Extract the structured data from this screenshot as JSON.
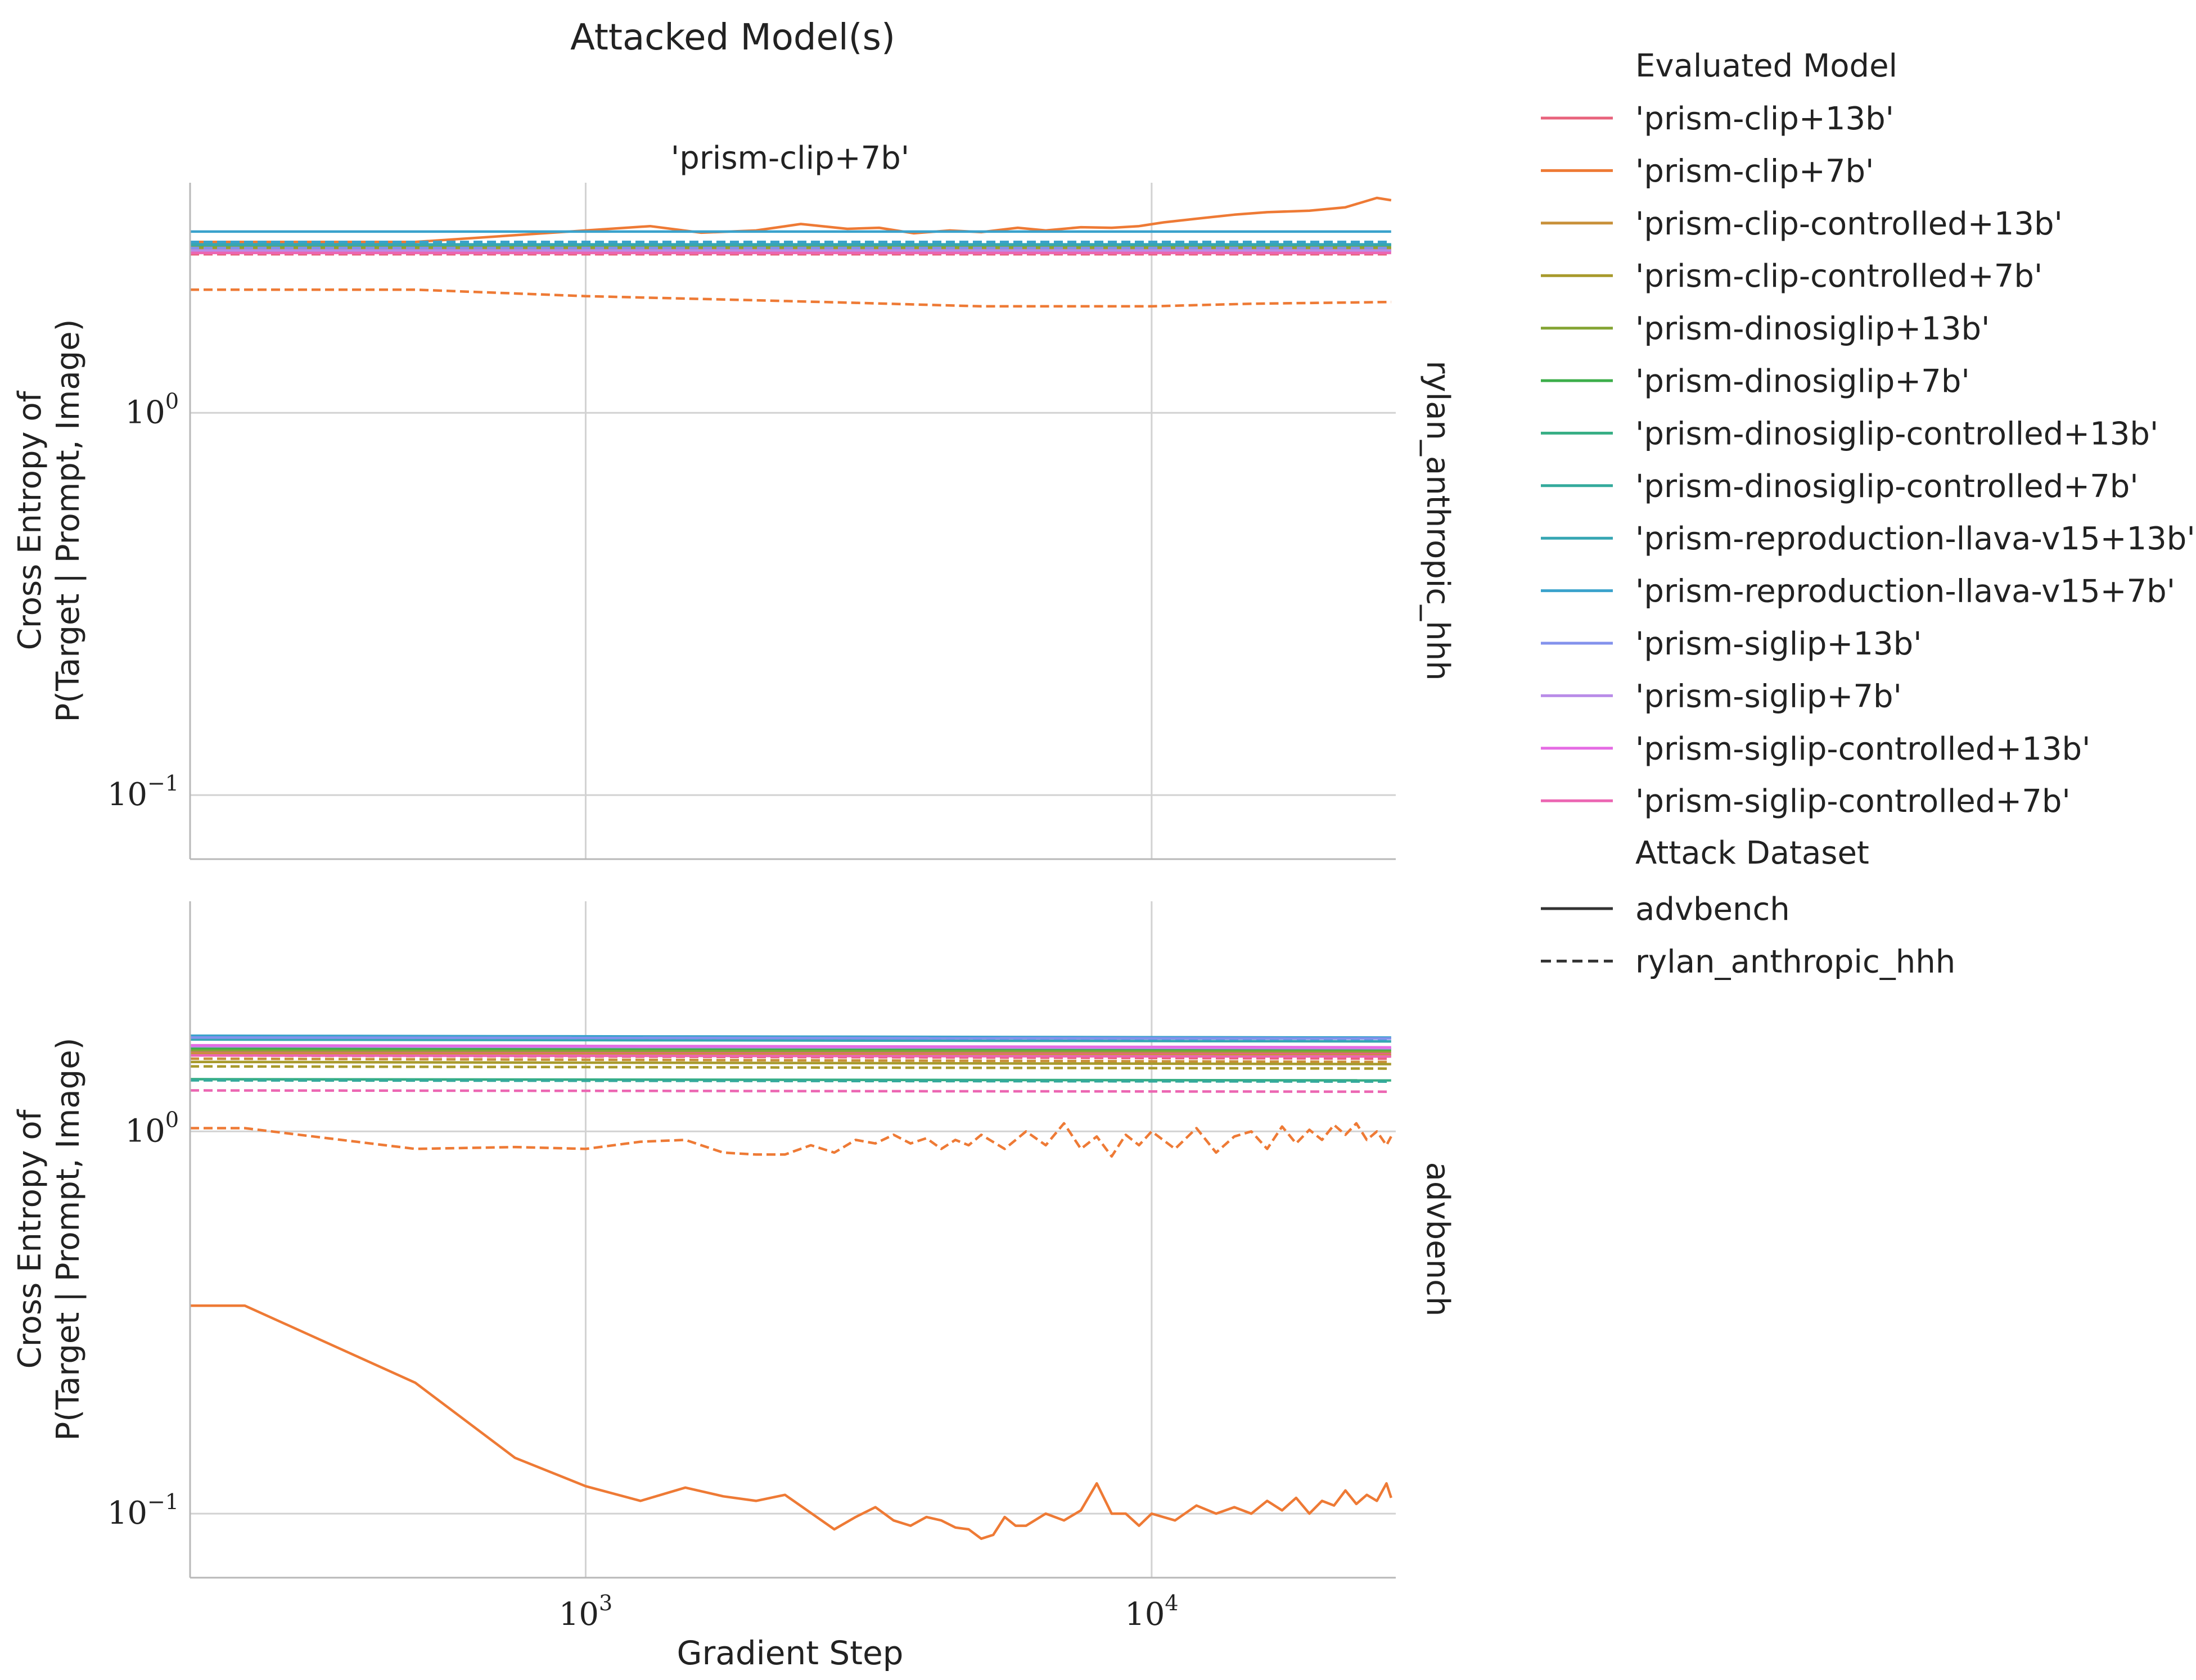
{
  "figure": {
    "title": "Attacked Model(s)",
    "column_title": "'prism-clip+7b'",
    "xlabel": "Gradient Step",
    "ylabel_line1": "Cross Entropy of",
    "ylabel_line2": "P(Target | Prompt, Image)",
    "row_labels": [
      "rylan_anthropic_hhh",
      "advbench"
    ]
  },
  "legend": {
    "title_models": "Evaluated Model",
    "models": [
      {
        "label": "'prism-clip+13b'",
        "color": "#e8637c"
      },
      {
        "label": "'prism-clip+7b'",
        "color": "#ee7a35"
      },
      {
        "label": "'prism-clip-controlled+13b'",
        "color": "#c8913a"
      },
      {
        "label": "'prism-clip-controlled+7b'",
        "color": "#a89a2c"
      },
      {
        "label": "'prism-dinosiglip+13b'",
        "color": "#85a535"
      },
      {
        "label": "'prism-dinosiglip+7b'",
        "color": "#3cae4a"
      },
      {
        "label": "'prism-dinosiglip-controlled+13b'",
        "color": "#36ae84"
      },
      {
        "label": "'prism-dinosiglip-controlled+7b'",
        "color": "#34aa9c"
      },
      {
        "label": "'prism-reproduction-llava-v15+13b'",
        "color": "#36a6b3"
      },
      {
        "label": "'prism-reproduction-llava-v15+7b'",
        "color": "#3aa2cc"
      },
      {
        "label": "'prism-siglip+13b'",
        "color": "#8392ec"
      },
      {
        "label": "'prism-siglip+7b'",
        "color": "#b98ce8"
      },
      {
        "label": "'prism-siglip-controlled+13b'",
        "color": "#e56ce4"
      },
      {
        "label": "'prism-siglip-controlled+7b'",
        "color": "#ec66b2"
      }
    ],
    "title_datasets": "Attack Dataset",
    "datasets": [
      {
        "label": "advbench",
        "style": "solid"
      },
      {
        "label": "rylan_anthropic_hhh",
        "style": "dashed"
      }
    ]
  },
  "chart_data": {
    "type": "line",
    "x_scale": "log",
    "y_scale": "log",
    "xlim": [
      200,
      27000
    ],
    "x_ticks": [
      {
        "value": 1000,
        "base": "10",
        "exp": "3"
      },
      {
        "value": 10000,
        "base": "10",
        "exp": "4"
      }
    ],
    "y_ticks": [
      {
        "value": 1,
        "base": "10",
        "exp": "0"
      },
      {
        "value": 0.1,
        "base": "10",
        "exp": "−1"
      }
    ],
    "grid": true,
    "legend_placement": "right, outside",
    "panels": [
      {
        "row": "rylan_anthropic_hhh",
        "ylim": [
          0.068,
          4.0
        ],
        "series": [
          {
            "model": "'prism-clip+7b'",
            "dataset": "advbench",
            "x": [
              200,
              500,
              1000,
              1300,
              1600,
              2000,
              2400,
              2900,
              3300,
              3800,
              4400,
              5000,
              5800,
              6500,
              7500,
              8500,
              9500,
              10500,
              12000,
              14000,
              16000,
              19000,
              22000,
              25000,
              26500
            ],
            "y": [
              2.8,
              2.8,
              3.0,
              3.08,
              2.96,
              3.0,
              3.12,
              3.03,
              3.05,
              2.95,
              3.0,
              2.97,
              3.05,
              3.0,
              3.06,
              3.05,
              3.08,
              3.15,
              3.22,
              3.3,
              3.35,
              3.38,
              3.45,
              3.65,
              3.6
            ]
          },
          {
            "model": "'prism-clip+7b'",
            "dataset": "rylan_anthropic_hhh",
            "x": [
              200,
              500,
              1000,
              2000,
              3000,
              5000,
              8000,
              10000,
              15000,
              20000,
              26500
            ],
            "y": [
              2.1,
              2.1,
              2.02,
              1.97,
              1.94,
              1.9,
              1.9,
              1.9,
              1.93,
              1.94,
              1.95
            ]
          },
          {
            "model": "'prism-clip+13b'",
            "dataset": "advbench",
            "x": [
              200,
              26500
            ],
            "y": [
              2.65,
              2.65
            ]
          },
          {
            "model": "'prism-clip+13b'",
            "dataset": "rylan_anthropic_hhh",
            "x": [
              200,
              26500
            ],
            "y": [
              2.6,
              2.6
            ]
          },
          {
            "model": "'prism-clip-controlled+13b'",
            "dataset": "advbench",
            "x": [
              200,
              26500
            ],
            "y": [
              2.68,
              2.68
            ]
          },
          {
            "model": "'prism-clip-controlled+7b'",
            "dataset": "advbench",
            "x": [
              200,
              26500
            ],
            "y": [
              2.7,
              2.7
            ]
          },
          {
            "model": "'prism-dinosiglip+13b'",
            "dataset": "advbench",
            "x": [
              200,
              26500
            ],
            "y": [
              2.72,
              2.72
            ]
          },
          {
            "model": "'prism-dinosiglip-controlled+7b'",
            "dataset": "advbench",
            "x": [
              200,
              26500
            ],
            "y": [
              2.75,
              2.75
            ]
          },
          {
            "model": "'prism-reproduction-llava-v15+13b'",
            "dataset": "advbench",
            "x": [
              200,
              26500
            ],
            "y": [
              2.76,
              2.76
            ]
          },
          {
            "model": "'prism-reproduction-llava-v15+7b'",
            "dataset": "advbench",
            "x": [
              200,
              26500
            ],
            "y": [
              2.98,
              2.98
            ]
          },
          {
            "model": "'prism-siglip+7b'",
            "dataset": "advbench",
            "x": [
              200,
              26500
            ],
            "y": [
              2.66,
              2.66
            ]
          },
          {
            "model": "'prism-siglip-controlled+7b'",
            "dataset": "advbench",
            "x": [
              200,
              26500
            ],
            "y": [
              2.62,
              2.62
            ]
          },
          {
            "model": "'prism-reproduction-llava-v15+7b'",
            "dataset": "rylan_anthropic_hhh",
            "x": [
              200,
              26500
            ],
            "y": [
              2.8,
              2.8
            ]
          },
          {
            "model": "'prism-siglip+13b'",
            "dataset": "rylan_anthropic_hhh",
            "x": [
              200,
              26500
            ],
            "y": [
              2.7,
              2.7
            ]
          }
        ]
      },
      {
        "row": "advbench",
        "ylim": [
          0.068,
          4.0
        ],
        "series": [
          {
            "model": "'prism-clip+7b'",
            "dataset": "advbench",
            "x": [
              200,
              250,
              500,
              750,
              1000,
              1250,
              1500,
              1750,
              2000,
              2250,
              2750,
              3000,
              3250,
              3500,
              3750,
              4000,
              4250,
              4500,
              4750,
              5000,
              5250,
              5500,
              5750,
              6000,
              6500,
              7000,
              7500,
              8000,
              8500,
              9000,
              9500,
              10000,
              11000,
              12000,
              13000,
              14000,
              15000,
              16000,
              17000,
              18000,
              19000,
              20000,
              21000,
              22000,
              23000,
              24000,
              25000,
              26000,
              26500
            ],
            "y": [
              0.35,
              0.35,
              0.22,
              0.14,
              0.118,
              0.108,
              0.117,
              0.111,
              0.108,
              0.112,
              0.091,
              0.098,
              0.104,
              0.096,
              0.093,
              0.098,
              0.096,
              0.092,
              0.091,
              0.086,
              0.088,
              0.098,
              0.093,
              0.093,
              0.1,
              0.096,
              0.102,
              0.12,
              0.1,
              0.1,
              0.093,
              0.1,
              0.096,
              0.105,
              0.1,
              0.104,
              0.1,
              0.108,
              0.102,
              0.11,
              0.1,
              0.108,
              0.105,
              0.115,
              0.106,
              0.112,
              0.108,
              0.12,
              0.11
            ]
          },
          {
            "model": "'prism-clip+7b'",
            "dataset": "rylan_anthropic_hhh",
            "x": [
              200,
              250,
              500,
              750,
              1000,
              1250,
              1500,
              1750,
              2000,
              2250,
              2500,
              2750,
              3000,
              3250,
              3500,
              3750,
              4000,
              4250,
              4500,
              4750,
              5000,
              5500,
              6000,
              6500,
              7000,
              7500,
              8000,
              8500,
              9000,
              9500,
              10000,
              11000,
              12000,
              13000,
              14000,
              15000,
              16000,
              17000,
              18000,
              19000,
              20000,
              21000,
              22000,
              23000,
              24000,
              25000,
              26000,
              26500
            ],
            "y": [
              1.02,
              1.02,
              0.9,
              0.91,
              0.9,
              0.94,
              0.95,
              0.88,
              0.87,
              0.87,
              0.92,
              0.88,
              0.95,
              0.93,
              0.98,
              0.93,
              0.96,
              0.9,
              0.95,
              0.92,
              0.98,
              0.9,
              1.0,
              0.92,
              1.05,
              0.9,
              0.97,
              0.86,
              0.98,
              0.92,
              1.0,
              0.9,
              1.02,
              0.88,
              0.97,
              1.0,
              0.9,
              1.03,
              0.93,
              1.01,
              0.95,
              1.04,
              0.98,
              1.05,
              0.95,
              1.0,
              0.92,
              0.97
            ]
          },
          {
            "model": "'prism-clip+13b'",
            "dataset": "advbench",
            "x": [
              200,
              26500
            ],
            "y": [
              1.62,
              1.6
            ]
          },
          {
            "model": "'prism-clip+13b'",
            "dataset": "rylan_anthropic_hhh",
            "x": [
              200,
              26500
            ],
            "y": [
              1.58,
              1.55
            ]
          },
          {
            "model": "'prism-clip-controlled+13b'",
            "dataset": "advbench",
            "x": [
              200,
              26500
            ],
            "y": [
              1.6,
              1.58
            ]
          },
          {
            "model": "'prism-clip-controlled+13b'",
            "dataset": "rylan_anthropic_hhh",
            "x": [
              200,
              26500
            ],
            "y": [
              1.55,
              1.52
            ]
          },
          {
            "model": "'prism-clip-controlled+7b'",
            "dataset": "advbench",
            "x": [
              200,
              26500
            ],
            "y": [
              1.52,
              1.5
            ]
          },
          {
            "model": "'prism-clip-controlled+7b'",
            "dataset": "rylan_anthropic_hhh",
            "x": [
              200,
              26500
            ],
            "y": [
              1.48,
              1.46
            ]
          },
          {
            "model": "'prism-dinosiglip+13b'",
            "dataset": "advbench",
            "x": [
              200,
              26500
            ],
            "y": [
              1.63,
              1.62
            ]
          },
          {
            "model": "'prism-dinosiglip+7b'",
            "dataset": "advbench",
            "x": [
              200,
              26500
            ],
            "y": [
              1.65,
              1.64
            ]
          },
          {
            "model": "'prism-dinosiglip-controlled+13b'",
            "dataset": "advbench",
            "x": [
              200,
              26500
            ],
            "y": [
              1.37,
              1.36
            ]
          },
          {
            "model": "'prism-dinosiglip-controlled+7b'",
            "dataset": "rylan_anthropic_hhh",
            "x": [
              200,
              26500
            ],
            "y": [
              1.36,
              1.35
            ]
          },
          {
            "model": "'prism-reproduction-llava-v15+13b'",
            "dataset": "advbench",
            "x": [
              200,
              26500
            ],
            "y": [
              1.74,
              1.72
            ]
          },
          {
            "model": "'prism-reproduction-llava-v15+7b'",
            "dataset": "advbench",
            "x": [
              200,
              26500
            ],
            "y": [
              1.78,
              1.76
            ]
          },
          {
            "model": "'prism-reproduction-llava-v15+7b'",
            "dataset": "rylan_anthropic_hhh",
            "x": [
              200,
              26500
            ],
            "y": [
              1.76,
              1.74
            ]
          },
          {
            "model": "'prism-siglip+13b'",
            "dataset": "advbench",
            "x": [
              200,
              26500
            ],
            "y": [
              1.76,
              1.75
            ]
          },
          {
            "model": "'prism-siglip+7b'",
            "dataset": "advbench",
            "x": [
              200,
              26500
            ],
            "y": [
              1.67,
              1.65
            ]
          },
          {
            "model": "'prism-siglip-controlled+13b'",
            "dataset": "advbench",
            "x": [
              200,
              26500
            ],
            "y": [
              1.68,
              1.66
            ]
          },
          {
            "model": "'prism-siglip-controlled+7b'",
            "dataset": "advbench",
            "x": [
              200,
              26500
            ],
            "y": [
              1.58,
              1.57
            ]
          },
          {
            "model": "'prism-siglip-controlled+7b'",
            "dataset": "rylan_anthropic_hhh",
            "x": [
              200,
              26500
            ],
            "y": [
              1.28,
              1.27
            ]
          }
        ]
      }
    ]
  }
}
